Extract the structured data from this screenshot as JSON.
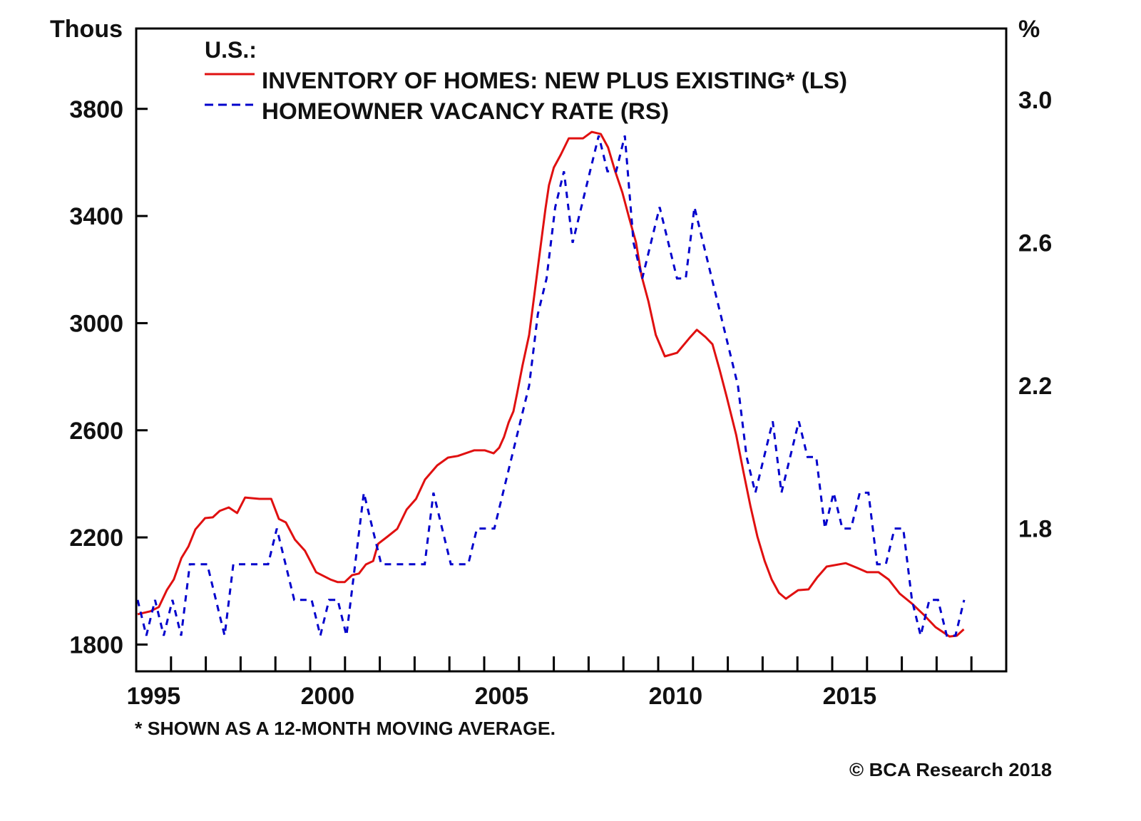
{
  "chart_data": {
    "type": "line",
    "left_axis": {
      "label": "Thous",
      "ylim": [
        1700,
        4100
      ],
      "ticks": [
        1800,
        2200,
        2600,
        3000,
        3400,
        3800
      ]
    },
    "right_axis": {
      "label": "%",
      "ylim": [
        1.4,
        3.2
      ],
      "ticks": [
        "1.8",
        "2.2",
        "2.6",
        "3.0"
      ]
    },
    "x_axis": {
      "xlim": [
        1995,
        2020
      ],
      "tick_labels": [
        "1995",
        "2000",
        "2005",
        "2010",
        "2015"
      ],
      "minor_ticks": "yearly"
    },
    "grid": false,
    "legend": {
      "placement": "top-left",
      "heading": "U.S.:",
      "entries": [
        "INVENTORY OF HOMES: NEW PLUS EXISTING* (LS)",
        "HOMEOWNER VACANCY RATE (RS)"
      ]
    },
    "series": [
      {
        "name": "INVENTORY OF HOMES: NEW PLUS EXISTING* (LS)",
        "axis": "left",
        "color": "#e01010",
        "style": "solid",
        "points": [
          [
            1995.04,
            1913
          ],
          [
            1995.4,
            1924
          ],
          [
            1995.65,
            1940
          ],
          [
            1995.88,
            2003
          ],
          [
            1996.08,
            2043
          ],
          [
            1996.3,
            2123
          ],
          [
            1996.5,
            2166
          ],
          [
            1996.7,
            2230
          ],
          [
            1996.98,
            2272
          ],
          [
            1997.2,
            2275
          ],
          [
            1997.4,
            2299
          ],
          [
            1997.66,
            2312
          ],
          [
            1997.9,
            2291
          ],
          [
            1998.13,
            2349
          ],
          [
            1998.54,
            2344
          ],
          [
            1998.88,
            2344
          ],
          [
            1999.1,
            2269
          ],
          [
            1999.3,
            2256
          ],
          [
            1999.56,
            2192
          ],
          [
            1999.85,
            2150
          ],
          [
            2000.17,
            2070
          ],
          [
            2000.58,
            2043
          ],
          [
            2000.79,
            2033
          ],
          [
            2000.99,
            2033
          ],
          [
            2001.2,
            2059
          ],
          [
            2001.4,
            2065
          ],
          [
            2001.6,
            2099
          ],
          [
            2001.81,
            2112
          ],
          [
            2001.95,
            2176
          ],
          [
            2002.22,
            2203
          ],
          [
            2002.5,
            2232
          ],
          [
            2002.77,
            2304
          ],
          [
            2003.04,
            2344
          ],
          [
            2003.3,
            2416
          ],
          [
            2003.65,
            2469
          ],
          [
            2003.96,
            2498
          ],
          [
            2004.24,
            2504
          ],
          [
            2004.71,
            2525
          ],
          [
            2005.02,
            2525
          ],
          [
            2005.27,
            2514
          ],
          [
            2005.43,
            2535
          ],
          [
            2005.57,
            2575
          ],
          [
            2005.7,
            2629
          ],
          [
            2005.84,
            2671
          ],
          [
            2005.94,
            2735
          ],
          [
            2006.1,
            2842
          ],
          [
            2006.29,
            2956
          ],
          [
            2006.45,
            3116
          ],
          [
            2006.6,
            3267
          ],
          [
            2006.76,
            3427
          ],
          [
            2006.86,
            3515
          ],
          [
            2007.0,
            3581
          ],
          [
            2007.2,
            3629
          ],
          [
            2007.43,
            3690
          ],
          [
            2007.84,
            3690
          ],
          [
            2008.09,
            3714
          ],
          [
            2008.35,
            3706
          ],
          [
            2008.56,
            3656
          ],
          [
            2008.76,
            3568
          ],
          [
            2008.97,
            3488
          ],
          [
            2009.17,
            3390
          ],
          [
            2009.36,
            3302
          ],
          [
            2009.52,
            3177
          ],
          [
            2009.72,
            3081
          ],
          [
            2009.93,
            2956
          ],
          [
            2010.19,
            2876
          ],
          [
            2010.54,
            2889
          ],
          [
            2010.89,
            2943
          ],
          [
            2011.11,
            2975
          ],
          [
            2011.36,
            2948
          ],
          [
            2011.56,
            2921
          ],
          [
            2011.77,
            2823
          ],
          [
            2011.97,
            2724
          ],
          [
            2012.24,
            2583
          ],
          [
            2012.44,
            2450
          ],
          [
            2012.65,
            2317
          ],
          [
            2012.85,
            2203
          ],
          [
            2013.06,
            2112
          ],
          [
            2013.26,
            2043
          ],
          [
            2013.47,
            1993
          ],
          [
            2013.67,
            1971
          ],
          [
            2014.02,
            2003
          ],
          [
            2014.32,
            2006
          ],
          [
            2014.57,
            2051
          ],
          [
            2014.84,
            2091
          ],
          [
            2015.39,
            2104
          ],
          [
            2015.72,
            2086
          ],
          [
            2016.0,
            2070
          ],
          [
            2016.33,
            2070
          ],
          [
            2016.62,
            2043
          ],
          [
            2016.94,
            1990
          ],
          [
            2017.29,
            1953
          ],
          [
            2017.64,
            1910
          ],
          [
            2017.97,
            1865
          ],
          [
            2018.37,
            1830
          ],
          [
            2018.58,
            1833
          ],
          [
            2018.78,
            1857
          ]
        ]
      },
      {
        "name": "HOMEOWNER VACANCY RATE (RS)",
        "axis": "right",
        "color": "#0000cc",
        "style": "dashed",
        "frequency": "quarterly",
        "start": "1995 Q1",
        "values": [
          1.6,
          1.5,
          1.6,
          1.5,
          1.6,
          1.5,
          1.7,
          1.7,
          1.7,
          1.6,
          1.5,
          1.7,
          1.7,
          1.7,
          1.7,
          1.7,
          1.8,
          1.7,
          1.6,
          1.6,
          1.6,
          1.5,
          1.6,
          1.6,
          1.5,
          1.7,
          1.9,
          1.8,
          1.7,
          1.7,
          1.7,
          1.7,
          1.7,
          1.7,
          1.9,
          1.8,
          1.7,
          1.7,
          1.7,
          1.8,
          1.8,
          1.8,
          1.9,
          2.0,
          2.1,
          2.2,
          2.4,
          2.5,
          2.7,
          2.8,
          2.6,
          2.7,
          2.8,
          2.9,
          2.8,
          2.8,
          2.9,
          2.6,
          2.5,
          2.6,
          2.7,
          2.6,
          2.5,
          2.5,
          2.7,
          2.6,
          2.5,
          2.4,
          2.3,
          2.2,
          2.0,
          1.9,
          2.0,
          2.1,
          1.9,
          2.0,
          2.1,
          2.0,
          2.0,
          1.8,
          1.9,
          1.8,
          1.8,
          1.9,
          1.9,
          1.7,
          1.7,
          1.8,
          1.8,
          1.6,
          1.5,
          1.6,
          1.6,
          1.5,
          1.5,
          1.6
        ]
      }
    ],
    "footnote": "* SHOWN AS A 12-MONTH MOVING AVERAGE.",
    "source": "© BCA Research 2018"
  }
}
